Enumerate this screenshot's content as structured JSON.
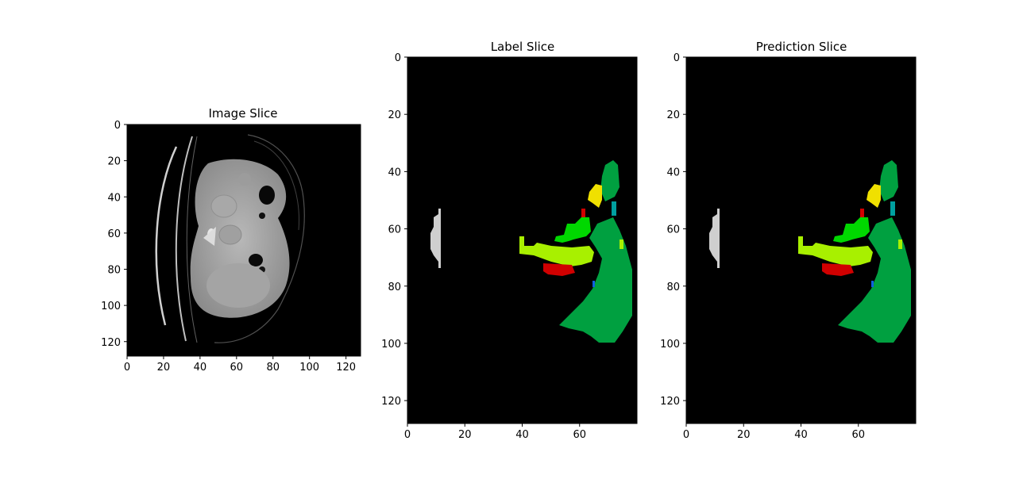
{
  "colors": {
    "background": "#000000",
    "class_1_light_gray": "#cfcfcf",
    "class_2_yellow_green": "#a8f000",
    "class_3_green": "#00d800",
    "class_4_dark_green": "#00a040",
    "class_5_red": "#d00000",
    "class_6_yellow": "#f0e000",
    "class_7_teal": "#00a0a0",
    "class_8_blue": "#1060e0"
  },
  "chart_data": [
    {
      "type": "heatmap",
      "title": "Image Slice",
      "colormap": "gray",
      "xticks": [
        "0",
        "20",
        "40",
        "60",
        "80",
        "100",
        "120"
      ],
      "yticks": [
        "0",
        "20",
        "40",
        "60",
        "80",
        "100",
        "120"
      ],
      "xlim": [
        0,
        128
      ],
      "ylim": [
        128,
        0
      ],
      "grid": false,
      "legend": "none"
    },
    {
      "type": "heatmap",
      "title": "Label Slice",
      "colormap": "segmentation-labels",
      "xticks": [
        "0",
        "20",
        "40",
        "60"
      ],
      "yticks": [
        "0",
        "20",
        "40",
        "60",
        "80",
        "100",
        "120"
      ],
      "xlim": [
        0,
        80
      ],
      "ylim": [
        128,
        0
      ],
      "grid": false,
      "legend": "none"
    },
    {
      "type": "heatmap",
      "title": "Prediction Slice",
      "colormap": "segmentation-labels",
      "xticks": [
        "0",
        "20",
        "40",
        "60"
      ],
      "yticks": [
        "0",
        "20",
        "40",
        "60",
        "80",
        "100",
        "120"
      ],
      "xlim": [
        0,
        80
      ],
      "ylim": [
        128,
        0
      ],
      "grid": false,
      "legend": "none"
    }
  ]
}
